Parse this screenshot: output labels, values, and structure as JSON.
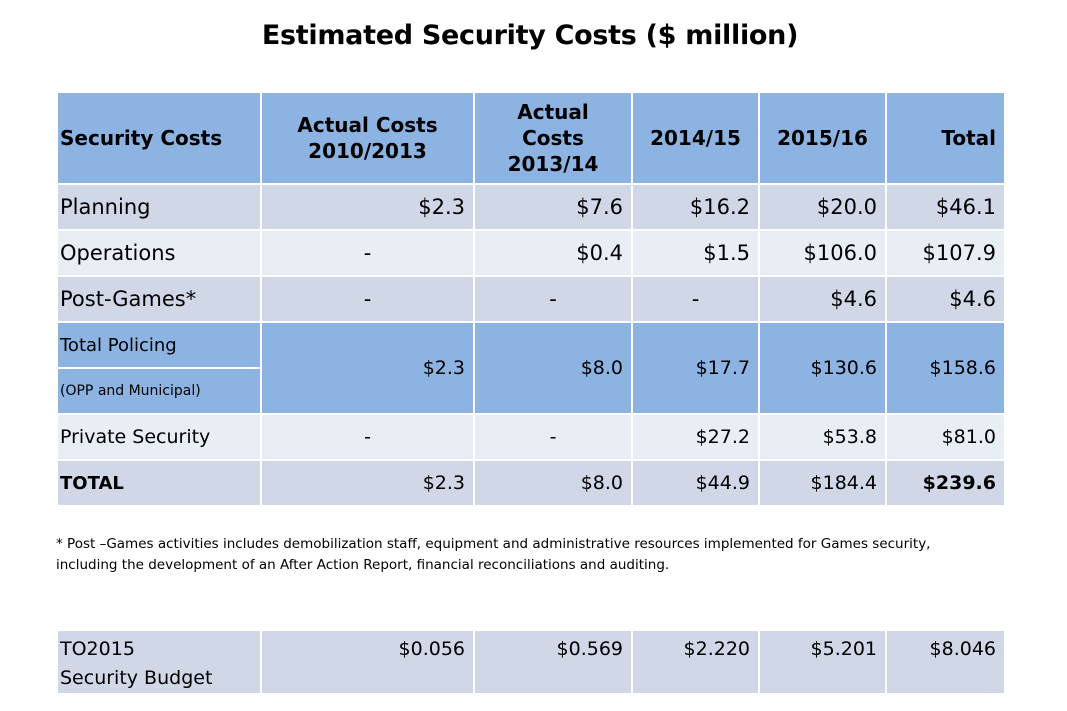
{
  "title": "Estimated Security Costs ($ million)",
  "table": {
    "headers": [
      "Security Costs",
      "Actual  Costs 2010/2013",
      "Actual Costs 2013/14",
      "2014/15",
      "2015/16",
      "Total"
    ],
    "rows": {
      "planning": {
        "label": "Planning",
        "values": [
          "$2.3",
          "$7.6",
          "$16.2",
          "$20.0",
          "$46.1"
        ]
      },
      "operations": {
        "label": "Operations",
        "values": [
          "-",
          "$0.4",
          "$1.5",
          "$106.0",
          "$107.9"
        ]
      },
      "post_games": {
        "label": "Post-Games*",
        "values": [
          "-",
          "-",
          "-",
          "$4.6",
          "$4.6"
        ]
      },
      "total_policing": {
        "label": "Total Policing",
        "sublabel": "(OPP and Municipal)",
        "values": [
          "$2.3",
          "$8.0",
          "$17.7",
          "$130.6",
          "$158.6"
        ]
      },
      "private_security": {
        "label": "Private Security",
        "values": [
          "-",
          "-",
          "$27.2",
          "$53.8",
          "$81.0"
        ]
      },
      "total": {
        "label": "TOTAL",
        "values": [
          "$2.3",
          "$8.0",
          "$44.9",
          "$184.4",
          "$239.6"
        ]
      }
    }
  },
  "footnote": "* Post –Games activities includes demobilization staff, equipment and administrative resources implemented for Games security, including the development of an After Action Report, financial reconciliations and auditing.",
  "budget": {
    "label_line1": "TO2015",
    "label_line2": "Security Budget",
    "values": [
      "$0.056",
      "$0.569",
      "$2.220",
      "$5.201",
      "$8.046"
    ]
  },
  "colors": {
    "header": "#8db3e2",
    "row_dark": "#d0d8e8",
    "row_light": "#e9edf4"
  }
}
